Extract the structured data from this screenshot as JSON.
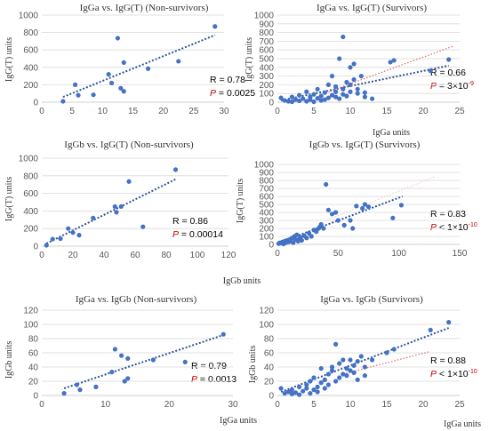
{
  "chart_data": [
    {
      "type": "scatter",
      "title": "IgGa vs. IgG(T) (Non-survivors)",
      "xlabel": "",
      "ylabel": "IgG(T) units",
      "xlim": [
        0,
        30
      ],
      "ylim": [
        0,
        1000
      ],
      "xticks": [
        "0",
        "5",
        "10",
        "15",
        "20",
        "25",
        "30"
      ],
      "yticks": [
        "0",
        "200",
        "400",
        "600",
        "800",
        "1000"
      ],
      "grid": true,
      "annotation": {
        "r_text": "R = 0.78",
        "p_symbol": "P",
        "p_text": " = 0.0025",
        "p_sup": ""
      },
      "series": [
        {
          "points": [
            [
              3.5,
              10
            ],
            [
              5.5,
              200
            ],
            [
              6,
              80
            ],
            [
              8.5,
              85
            ],
            [
              11,
              320
            ],
            [
              11.5,
              220
            ],
            [
              12.5,
              735
            ],
            [
              13,
              160
            ],
            [
              13.5,
              455
            ],
            [
              13.5,
              125
            ],
            [
              17.5,
              385
            ],
            [
              22.5,
              470
            ],
            [
              28.5,
              870
            ]
          ]
        }
      ],
      "trendlines": [
        {
          "x": [
            3.5,
            28.5
          ],
          "y": [
            60,
            770
          ],
          "color": "#2f5597"
        }
      ]
    },
    {
      "type": "scatter",
      "title": "IgGa vs. IgG(T) (Survivors)",
      "xlabel": "IgGa units",
      "ylabel": "IgG(T) units",
      "xlim": [
        0,
        25
      ],
      "ylim": [
        0,
        1000
      ],
      "xticks": [
        "0",
        "5",
        "10",
        "15",
        "20",
        "25"
      ],
      "yticks": [
        "0",
        "100",
        "200",
        "300",
        "400",
        "500",
        "600",
        "700",
        "800",
        "900",
        "1000"
      ],
      "grid": true,
      "annotation": {
        "r_text": "R = 0.66",
        "p_symbol": "P",
        "p_text": " = 3×10",
        "p_sup": "-9"
      },
      "series": [
        {
          "points": [
            [
              0.5,
              50
            ],
            [
              1,
              20
            ],
            [
              1.5,
              10
            ],
            [
              2,
              5
            ],
            [
              2,
              60
            ],
            [
              2.5,
              30
            ],
            [
              3,
              15
            ],
            [
              3,
              80
            ],
            [
              3.5,
              40
            ],
            [
              4,
              10
            ],
            [
              4,
              120
            ],
            [
              4.5,
              60
            ],
            [
              4.5,
              30
            ],
            [
              5,
              5
            ],
            [
              5,
              90
            ],
            [
              5.5,
              45
            ],
            [
              5.5,
              150
            ],
            [
              6,
              20
            ],
            [
              6,
              70
            ],
            [
              6.5,
              110
            ],
            [
              6.5,
              30
            ],
            [
              7,
              50
            ],
            [
              7,
              200
            ],
            [
              7.5,
              80
            ],
            [
              7.5,
              300
            ],
            [
              8,
              120
            ],
            [
              8,
              180
            ],
            [
              8,
              60
            ],
            [
              8.5,
              40
            ],
            [
              8.5,
              500
            ],
            [
              9,
              750
            ],
            [
              9,
              150
            ],
            [
              9,
              90
            ],
            [
              9.5,
              230
            ],
            [
              9.5,
              70
            ],
            [
              10,
              400
            ],
            [
              10,
              200
            ],
            [
              10,
              120
            ],
            [
              10.5,
              440
            ],
            [
              10.5,
              260
            ],
            [
              11,
              100
            ],
            [
              11,
              150
            ],
            [
              11.5,
              300
            ],
            [
              12,
              60
            ],
            [
              12,
              110
            ],
            [
              13,
              40
            ],
            [
              15.5,
              460
            ],
            [
              16,
              480
            ],
            [
              21,
              360
            ],
            [
              23.5,
              490
            ]
          ]
        }
      ],
      "trendlines": [
        {
          "x": [
            0.5,
            23.5
          ],
          "y": [
            20,
            420
          ],
          "color": "#2f5597"
        },
        {
          "x": [
            7,
            24
          ],
          "y": [
            120,
            640
          ],
          "color": "#e06666"
        }
      ]
    },
    {
      "type": "scatter",
      "title": "IgGb vs. IgG(T) (Non-survivors)",
      "xlabel": "IgGb units",
      "ylabel": "IgG(T) units",
      "xlim": [
        0,
        120
      ],
      "ylim": [
        0,
        1000
      ],
      "xticks": [
        "0",
        "20",
        "40",
        "60",
        "80",
        "100",
        "120"
      ],
      "yticks": [
        "0",
        "200",
        "400",
        "600",
        "800",
        "1000"
      ],
      "grid": true,
      "annotation": {
        "r_text": "R = 0.86",
        "p_symbol": "P",
        "p_text": " = 0.00014",
        "p_sup": ""
      },
      "series": [
        {
          "points": [
            [
              3,
              10
            ],
            [
              7,
              80
            ],
            [
              12,
              85
            ],
            [
              17,
              200
            ],
            [
              20,
              155
            ],
            [
              24,
              125
            ],
            [
              33,
              320
            ],
            [
              47,
              450
            ],
            [
              48,
              385
            ],
            [
              51,
              450
            ],
            [
              56,
              735
            ],
            [
              65,
              220
            ],
            [
              86,
              870
            ]
          ]
        }
      ],
      "trendlines": [
        {
          "x": [
            3,
            86
          ],
          "y": [
            30,
            760
          ],
          "color": "#2f5597"
        }
      ]
    },
    {
      "type": "scatter",
      "title": "IgGb vs. IgG(T) (Survivors)",
      "xlabel": "",
      "ylabel": "IgG(T) units",
      "xlim": [
        0,
        150
      ],
      "ylim": [
        0,
        1000
      ],
      "xticks": [
        "0",
        "50",
        "100",
        "150"
      ],
      "yticks": [
        "0",
        "100",
        "200",
        "300",
        "400",
        "500",
        "600",
        "700",
        "800",
        "900",
        "1000"
      ],
      "grid": true,
      "annotation": {
        "r_text": "R = 0.83",
        "p_symbol": "P",
        "p_text": " < 1×10",
        "p_sup": "-10"
      },
      "series": [
        {
          "points": [
            [
              1,
              10
            ],
            [
              2,
              20
            ],
            [
              3,
              15
            ],
            [
              4,
              30
            ],
            [
              5,
              5
            ],
            [
              6,
              40
            ],
            [
              7,
              20
            ],
            [
              8,
              50
            ],
            [
              9,
              30
            ],
            [
              10,
              60
            ],
            [
              11,
              40
            ],
            [
              12,
              80
            ],
            [
              13,
              20
            ],
            [
              14,
              100
            ],
            [
              15,
              60
            ],
            [
              16,
              120
            ],
            [
              17,
              40
            ],
            [
              18,
              70
            ],
            [
              19,
              90
            ],
            [
              20,
              50
            ],
            [
              22,
              110
            ],
            [
              24,
              80
            ],
            [
              26,
              140
            ],
            [
              28,
              100
            ],
            [
              30,
              180
            ],
            [
              32,
              160
            ],
            [
              34,
              200
            ],
            [
              35,
              220
            ],
            [
              36,
              250
            ],
            [
              38,
              200
            ],
            [
              40,
              750
            ],
            [
              42,
              430
            ],
            [
              45,
              380
            ],
            [
              48,
              400
            ],
            [
              50,
              300
            ],
            [
              55,
              240
            ],
            [
              60,
              300
            ],
            [
              62,
              200
            ],
            [
              65,
              480
            ],
            [
              70,
              450
            ],
            [
              72,
              500
            ],
            [
              75,
              470
            ],
            [
              95,
              330
            ],
            [
              102,
              490
            ]
          ]
        }
      ],
      "trendlines": [
        {
          "x": [
            1,
            103
          ],
          "y": [
            20,
            600
          ],
          "color": "#2f5597"
        },
        {
          "x": [
            40,
            130
          ],
          "y": [
            300,
            850
          ],
          "color": "#f4cccc"
        }
      ]
    },
    {
      "type": "scatter",
      "title": "IgGa vs. IgGb (Non-survivors)",
      "xlabel": "IgGa units",
      "ylabel": "IgGb units",
      "xlim": [
        0,
        30
      ],
      "ylim": [
        0,
        120
      ],
      "xticks": [
        "0",
        "10",
        "20",
        "30"
      ],
      "yticks": [
        "0",
        "20",
        "40",
        "60",
        "80",
        "100",
        "120"
      ],
      "grid": true,
      "annotation": {
        "r_text": "R = 0.79",
        "p_symbol": "P",
        "p_text": " = 0.0013",
        "p_sup": ""
      },
      "series": [
        {
          "points": [
            [
              3.5,
              3
            ],
            [
              5.5,
              15
            ],
            [
              6,
              8
            ],
            [
              8.5,
              12
            ],
            [
              11,
              33
            ],
            [
              11.5,
              65
            ],
            [
              12.5,
              56
            ],
            [
              13,
              20
            ],
            [
              13.5,
              52
            ],
            [
              13.5,
              24
            ],
            [
              17.5,
              50
            ],
            [
              22.5,
              47
            ],
            [
              28.5,
              86
            ]
          ]
        }
      ],
      "trendlines": [
        {
          "x": [
            3.5,
            28.5
          ],
          "y": [
            10,
            85
          ],
          "color": "#2f5597"
        }
      ]
    },
    {
      "type": "scatter",
      "title": "IgGa vs. IgGb (Survivors)",
      "xlabel": "IgGa units",
      "ylabel": "IgGb units",
      "xlim": [
        0,
        25
      ],
      "ylim": [
        0,
        120
      ],
      "xticks": [
        "0",
        "5",
        "10",
        "15",
        "20",
        "25"
      ],
      "yticks": [
        "0",
        "20",
        "40",
        "60",
        "80",
        "100",
        "120"
      ],
      "grid": true,
      "annotation": {
        "r_text": "R = 0.88",
        "p_symbol": "P",
        "p_text": " < 1×10",
        "p_sup": "-10"
      },
      "series": [
        {
          "points": [
            [
              0.5,
              10
            ],
            [
              1,
              3
            ],
            [
              1.5,
              5
            ],
            [
              2,
              2
            ],
            [
              2,
              8
            ],
            [
              2.5,
              4
            ],
            [
              3,
              12
            ],
            [
              3,
              1
            ],
            [
              3.5,
              6
            ],
            [
              4,
              10
            ],
            [
              4,
              15
            ],
            [
              4.5,
              3
            ],
            [
              4.5,
              20
            ],
            [
              5,
              8
            ],
            [
              5,
              25
            ],
            [
              5.5,
              12
            ],
            [
              5.5,
              5
            ],
            [
              6,
              18
            ],
            [
              6,
              38
            ],
            [
              6.5,
              22
            ],
            [
              6.5,
              10
            ],
            [
              7,
              30
            ],
            [
              7,
              15
            ],
            [
              7.5,
              35
            ],
            [
              7.5,
              40
            ],
            [
              8,
              20
            ],
            [
              8,
              72
            ],
            [
              8.5,
              25
            ],
            [
              8.5,
              45
            ],
            [
              9,
              30
            ],
            [
              9,
              50
            ],
            [
              9.5,
              38
            ],
            [
              9.5,
              28
            ],
            [
              10,
              50
            ],
            [
              10,
              35
            ],
            [
              10.5,
              42
            ],
            [
              10.5,
              32
            ],
            [
              11,
              48
            ],
            [
              11,
              22
            ],
            [
              11.5,
              55
            ],
            [
              12,
              28
            ],
            [
              12,
              40
            ],
            [
              13,
              50
            ],
            [
              15,
              60
            ],
            [
              16,
              65
            ],
            [
              21,
              92
            ],
            [
              23.5,
              103
            ]
          ]
        }
      ],
      "trendlines": [
        {
          "x": [
            0.5,
            23.5
          ],
          "y": [
            5,
            95
          ],
          "color": "#2f5597"
        },
        {
          "x": [
            9,
            21
          ],
          "y": [
            30,
            62
          ],
          "color": "#e06666"
        }
      ]
    }
  ]
}
